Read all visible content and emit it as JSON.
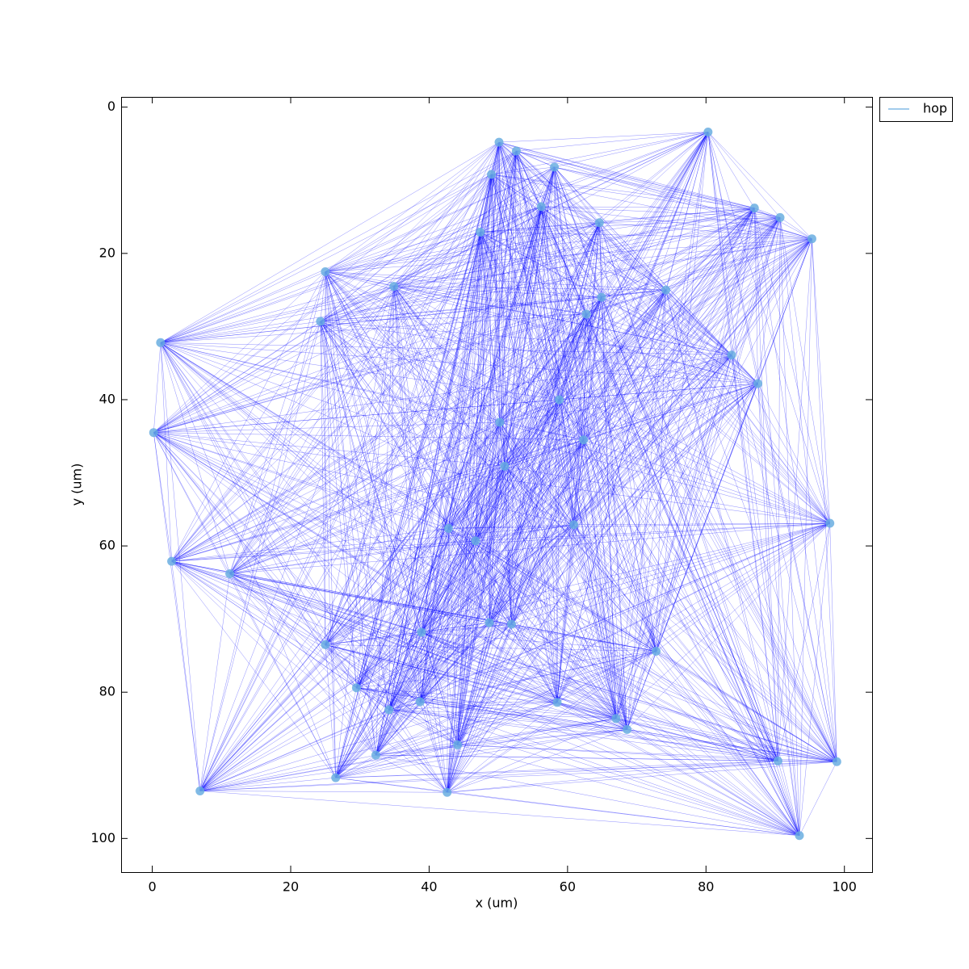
{
  "chart_data": {
    "type": "scatter",
    "xlabel": "x (um)",
    "ylabel": "y (um)",
    "xlim": [
      -4.5,
      104
    ],
    "ylim": [
      104.6,
      -1.4
    ],
    "xticks": [
      0,
      20,
      40,
      60,
      80,
      100
    ],
    "yticks": [
      0,
      20,
      40,
      60,
      80,
      100
    ],
    "legend": "upper right outside",
    "series": [
      {
        "name": "hop",
        "color": "#6aaee0",
        "edge_color": "#0000ff",
        "x": [
          50.1,
          52.6,
          58.1,
          49.0,
          80.3,
          87.0,
          90.7,
          95.3,
          56.2,
          64.6,
          47.4,
          25.0,
          34.9,
          24.3,
          74.2,
          64.9,
          62.7,
          1.2,
          83.7,
          87.5,
          58.8,
          50.2,
          0.2,
          62.3,
          50.9,
          42.8,
          60.9,
          97.9,
          46.7,
          2.8,
          11.2,
          48.7,
          51.9,
          38.9,
          25.0,
          72.8,
          29.5,
          38.7,
          34.2,
          58.5,
          67.0,
          68.6,
          44.1,
          32.3,
          26.5,
          90.4,
          98.9,
          6.9,
          42.6,
          93.5
        ],
        "y": [
          4.8,
          6.0,
          8.2,
          9.2,
          3.4,
          13.8,
          15.1,
          18.0,
          13.6,
          15.8,
          17.1,
          22.5,
          24.5,
          29.3,
          25.0,
          26.0,
          28.3,
          32.2,
          33.9,
          37.8,
          40.0,
          43.1,
          44.5,
          45.5,
          49.1,
          57.6,
          57.1,
          56.9,
          59.3,
          62.1,
          63.8,
          70.5,
          70.7,
          71.8,
          73.5,
          74.4,
          79.4,
          81.3,
          82.4,
          81.4,
          83.6,
          85.1,
          87.2,
          88.6,
          91.7,
          89.4,
          89.5,
          93.5,
          93.7,
          99.6
        ]
      }
    ]
  }
}
